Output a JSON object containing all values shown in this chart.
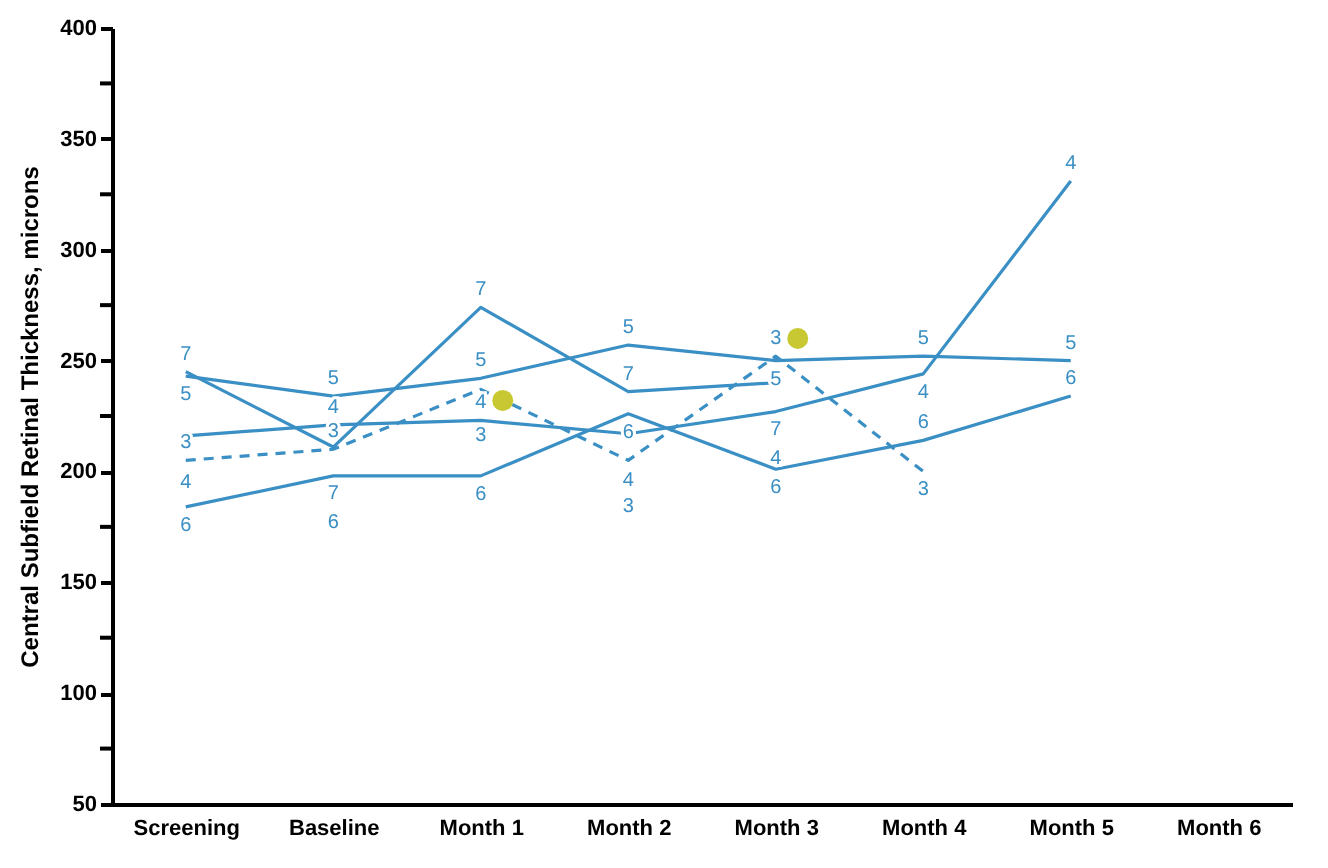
{
  "chart_data": {
    "type": "line",
    "ylabel": "Central Subfield Retinal Thickness, microns",
    "categories": [
      "Screening",
      "Baseline",
      "Month 1",
      "Month 2",
      "Month 3",
      "Month 4",
      "Month 5",
      "Month 6"
    ],
    "ylim": [
      50,
      400
    ],
    "yticks": [
      50,
      {
        "value": 75,
        "label": null
      },
      100,
      {
        "value": 125,
        "label": null
      },
      150,
      {
        "value": 175,
        "label": null
      },
      200,
      {
        "value": 225,
        "label": null
      },
      250,
      {
        "value": 275,
        "label": null
      },
      300,
      {
        "value": 325,
        "label": null
      },
      350,
      {
        "value": 375,
        "label": null
      },
      400
    ],
    "grid": false,
    "marker": "none",
    "series": [
      {
        "name": "7",
        "color": "#3a8fc4",
        "values": [
          245,
          211,
          274,
          236,
          240,
          null,
          null,
          null
        ]
      },
      {
        "name": "5",
        "color": "#3a8fc4",
        "values": [
          243,
          234,
          242,
          257,
          250,
          252,
          250,
          null
        ]
      },
      {
        "name": "4",
        "color": "#3a8fc4",
        "values": [
          216,
          221,
          223,
          217,
          227,
          244,
          331,
          null
        ]
      },
      {
        "name": "3",
        "color": "#3a8fc4",
        "line_style": "dashed",
        "values": [
          205,
          210,
          237,
          205,
          252,
          200,
          null,
          null
        ]
      },
      {
        "name": "6",
        "color": "#3a8fc4",
        "values": [
          184,
          198,
          198,
          226,
          201,
          214,
          234,
          null
        ]
      },
      {
        "type": "scatter",
        "marker": "circle",
        "color": "#c8c832",
        "values": [
          null,
          null,
          232,
          null,
          260,
          null,
          null,
          null
        ]
      }
    ]
  }
}
